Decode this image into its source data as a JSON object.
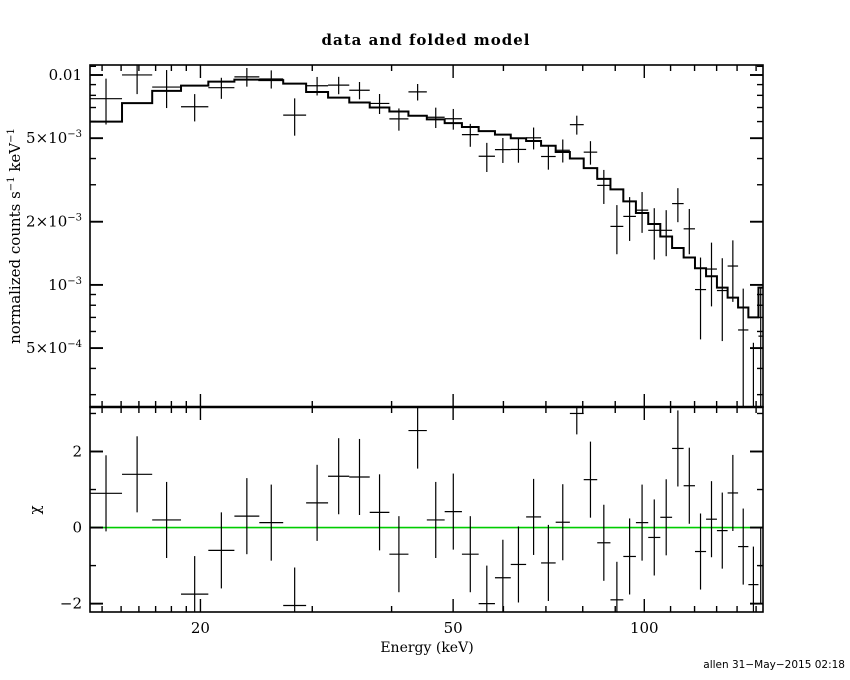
{
  "chart_data": {
    "type": "line",
    "title": "data and folded model",
    "xlabel": "Energy (keV)",
    "footer": "allen 31−May−2015 02:18",
    "x_axis": {
      "scale": "log",
      "range": [
        13.4,
        153.8
      ],
      "major_ticks": [
        {
          "value": 20,
          "label": "20"
        },
        {
          "value": 50,
          "label": "50"
        },
        {
          "value": 100,
          "label": "100"
        }
      ],
      "minor_ticks": [
        14,
        15,
        16,
        17,
        18,
        19,
        30,
        40,
        60,
        70,
        80,
        90,
        110,
        120,
        130,
        140,
        150
      ]
    },
    "panels": [
      {
        "id": "spectrum",
        "ylabel": "normalized counts s^{−1} keV^{−1}",
        "yscale": "log",
        "yrange": [
          0.000262,
          0.01116
        ],
        "major_ticks": [
          {
            "value": 0.01,
            "label": "0.01"
          },
          {
            "value": 0.005,
            "label": "5×10^{−3}"
          },
          {
            "value": 0.002,
            "label": "2×10^{−3}"
          },
          {
            "value": 0.001,
            "label": "10^{−3}"
          },
          {
            "value": 0.0005,
            "label": "5×10^{−4}"
          }
        ],
        "minor_ticks": [
          0.011,
          0.009,
          0.008,
          0.007,
          0.006,
          0.004,
          0.003,
          0.0009,
          0.0008,
          0.0007,
          0.0006,
          0.0004,
          0.0003
        ]
      },
      {
        "id": "residuals",
        "ylabel": "χ",
        "yscale": "linear",
        "yrange": [
          -2.22,
          3.17
        ],
        "major_ticks": [
          {
            "value": 2,
            "label": "2"
          },
          {
            "value": 0,
            "label": "0"
          },
          {
            "value": -2,
            "label": "−2"
          }
        ],
        "minor_ticks": [
          3,
          1,
          -1
        ],
        "zero_line": {
          "y": 0,
          "color": "#00CC00"
        }
      }
    ],
    "series": [
      {
        "name": "folded model",
        "style": "step-line",
        "color": "#000000"
      },
      {
        "name": "data",
        "style": "cross-error-bars",
        "color": "#000000"
      }
    ],
    "bins": [
      {
        "e_lo": 13.4,
        "e_hi": 15.05,
        "model": 0.006,
        "data": 0.00771,
        "err": 0.0019,
        "chi": 0.9,
        "chi_err": 1.0
      },
      {
        "e_lo": 15.05,
        "e_hi": 16.79,
        "model": 0.00735,
        "data": 0.01001,
        "err": 0.0019,
        "chi": 1.4,
        "chi_err": 1.0
      },
      {
        "e_lo": 16.79,
        "e_hi": 18.64,
        "model": 0.0084,
        "data": 0.00876,
        "err": 0.0018,
        "chi": 0.2,
        "chi_err": 1.0
      },
      {
        "e_lo": 18.64,
        "e_hi": 20.58,
        "model": 0.0089,
        "data": 0.00706,
        "err": 0.00105,
        "chi": -1.75,
        "chi_err": 1.0
      },
      {
        "e_lo": 20.58,
        "e_hi": 22.62,
        "model": 0.0093,
        "data": 0.0087,
        "err": 0.001,
        "chi": -0.6,
        "chi_err": 1.0
      },
      {
        "e_lo": 22.62,
        "e_hi": 24.76,
        "model": 0.0095,
        "data": 0.0098,
        "err": 0.001,
        "chi": 0.3,
        "chi_err": 1.0
      },
      {
        "e_lo": 24.76,
        "e_hi": 27.0,
        "model": 0.00945,
        "data": 0.00957,
        "err": 0.00095,
        "chi": 0.13,
        "chi_err": 1.0
      },
      {
        "e_lo": 27.0,
        "e_hi": 29.34,
        "model": 0.0091,
        "data": 0.00644,
        "err": 0.0013,
        "chi": -2.05,
        "chi_err": 1.0
      },
      {
        "e_lo": 29.34,
        "e_hi": 31.77,
        "model": 0.0083,
        "data": 0.00889,
        "err": 0.0009,
        "chi": 0.65,
        "chi_err": 1.0
      },
      {
        "e_lo": 31.77,
        "e_hi": 34.31,
        "model": 0.0078,
        "data": 0.00895,
        "err": 0.00085,
        "chi": 1.35,
        "chi_err": 1.0
      },
      {
        "e_lo": 34.31,
        "e_hi": 36.95,
        "model": 0.0074,
        "data": 0.00846,
        "err": 0.0008,
        "chi": 1.33,
        "chi_err": 1.0
      },
      {
        "e_lo": 36.95,
        "e_hi": 39.68,
        "model": 0.007,
        "data": 0.00732,
        "err": 0.0008,
        "chi": 0.4,
        "chi_err": 1.0
      },
      {
        "e_lo": 39.68,
        "e_hi": 42.52,
        "model": 0.0067,
        "data": 0.00618,
        "err": 0.00075,
        "chi": -0.7,
        "chi_err": 1.0
      },
      {
        "e_lo": 42.52,
        "e_hi": 45.45,
        "model": 0.0064,
        "data": 0.00831,
        "err": 0.00075,
        "chi": 2.55,
        "chi_err": 1.0
      },
      {
        "e_lo": 45.45,
        "e_hi": 48.49,
        "model": 0.00615,
        "data": 0.00629,
        "err": 0.0007,
        "chi": 0.2,
        "chi_err": 1.0
      },
      {
        "e_lo": 48.49,
        "e_hi": 51.62,
        "model": 0.0059,
        "data": 0.00619,
        "err": 0.0007,
        "chi": 0.42,
        "chi_err": 1.0
      },
      {
        "e_lo": 51.62,
        "e_hi": 54.85,
        "model": 0.00565,
        "data": 0.0052,
        "err": 0.00065,
        "chi": -0.7,
        "chi_err": 1.0
      },
      {
        "e_lo": 54.85,
        "e_hi": 58.19,
        "model": 0.0054,
        "data": 0.0041,
        "err": 0.00065,
        "chi": -2.0,
        "chi_err": 1.0
      },
      {
        "e_lo": 58.19,
        "e_hi": 61.62,
        "model": 0.0052,
        "data": 0.00441,
        "err": 0.0006,
        "chi": -1.32,
        "chi_err": 1.0
      },
      {
        "e_lo": 61.62,
        "e_hi": 65.15,
        "model": 0.005,
        "data": 0.00442,
        "err": 0.0006,
        "chi": -0.97,
        "chi_err": 1.0
      },
      {
        "e_lo": 65.15,
        "e_hi": 68.78,
        "model": 0.00485,
        "data": 0.00502,
        "err": 0.0006,
        "chi": 0.28,
        "chi_err": 1.0
      },
      {
        "e_lo": 68.78,
        "e_hi": 72.52,
        "model": 0.0046,
        "data": 0.00409,
        "err": 0.00055,
        "chi": -0.93,
        "chi_err": 1.0
      },
      {
        "e_lo": 72.52,
        "e_hi": 76.35,
        "model": 0.0043,
        "data": 0.00438,
        "err": 0.00055,
        "chi": 0.14,
        "chi_err": 1.0
      },
      {
        "e_lo": 76.35,
        "e_hi": 80.28,
        "model": 0.004,
        "data": 0.0058,
        "err": 0.0006,
        "chi": 3.0,
        "chi_err": 0.55
      },
      {
        "e_lo": 80.28,
        "e_hi": 84.31,
        "model": 0.0036,
        "data": 0.00429,
        "err": 0.00055,
        "chi": 1.26,
        "chi_err": 1.0
      },
      {
        "e_lo": 84.31,
        "e_hi": 88.45,
        "model": 0.0032,
        "data": 0.00298,
        "err": 0.00055,
        "chi": -0.4,
        "chi_err": 1.0
      },
      {
        "e_lo": 88.45,
        "e_hi": 92.68,
        "model": 0.00285,
        "data": 0.0019,
        "err": 0.0005,
        "chi": -1.9,
        "chi_err": 1.0
      },
      {
        "e_lo": 92.68,
        "e_hi": 97.01,
        "model": 0.0025,
        "data": 0.00212,
        "err": 0.0005,
        "chi": -0.76,
        "chi_err": 1.0
      },
      {
        "e_lo": 97.01,
        "e_hi": 101.44,
        "model": 0.0022,
        "data": 0.00227,
        "err": 0.0005,
        "chi": 0.13,
        "chi_err": 1.0
      },
      {
        "e_lo": 101.44,
        "e_hi": 105.98,
        "model": 0.00195,
        "data": 0.00182,
        "err": 0.0005,
        "chi": -0.26,
        "chi_err": 1.0
      },
      {
        "e_lo": 105.98,
        "e_hi": 110.61,
        "model": 0.0017,
        "data": 0.00182,
        "err": 0.00045,
        "chi": 0.27,
        "chi_err": 1.0
      },
      {
        "e_lo": 110.61,
        "e_hi": 115.34,
        "model": 0.0015,
        "data": 0.00244,
        "err": 0.00045,
        "chi": 2.08,
        "chi_err": 1.0
      },
      {
        "e_lo": 115.34,
        "e_hi": 120.18,
        "model": 0.00135,
        "data": 0.00185,
        "err": 0.00045,
        "chi": 1.1,
        "chi_err": 1.0
      },
      {
        "e_lo": 120.18,
        "e_hi": 125.11,
        "model": 0.0012,
        "data": 0.00095,
        "err": 0.0004,
        "chi": -0.63,
        "chi_err": 1.0
      },
      {
        "e_lo": 125.11,
        "e_hi": 130.14,
        "model": 0.0011,
        "data": 0.00119,
        "err": 0.0004,
        "chi": 0.22,
        "chi_err": 1.0
      },
      {
        "e_lo": 130.14,
        "e_hi": 135.28,
        "model": 0.00097,
        "data": 0.00094,
        "err": 0.0004,
        "chi": -0.08,
        "chi_err": 1.0
      },
      {
        "e_lo": 135.28,
        "e_hi": 140.51,
        "model": 0.00087,
        "data": 0.00123,
        "err": 0.0004,
        "chi": 0.91,
        "chi_err": 1.0
      },
      {
        "e_lo": 140.51,
        "e_hi": 145.85,
        "model": 0.00078,
        "data": 0.00061,
        "err": 0.00035,
        "chi": -0.5,
        "chi_err": 1.0
      },
      {
        "e_lo": 145.85,
        "e_hi": 151.28,
        "model": 0.0007,
        "data": 0.00018,
        "err": 0.00035,
        "chi": -1.5,
        "chi_err": 1.0
      },
      {
        "e_lo": 151.28,
        "e_hi": 153.8,
        "model": 0.00097,
        "data": 0.00057,
        "err": 0.0004,
        "chi": -1.0,
        "chi_err": 1.0
      }
    ]
  }
}
